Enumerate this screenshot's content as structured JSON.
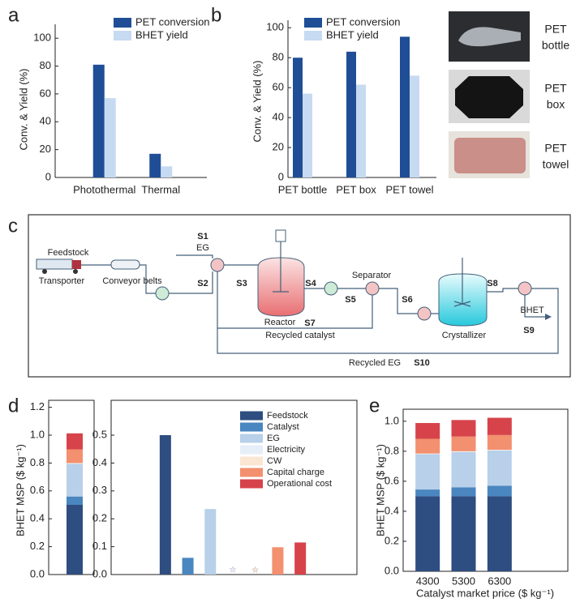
{
  "chart_data": [
    {
      "type": "bar",
      "panel": "a",
      "categories": [
        "Photothermal",
        "Thermal"
      ],
      "series": [
        {
          "name": "PET conversion",
          "color": "#1f4e96",
          "values": [
            81,
            17
          ]
        },
        {
          "name": "BHET yield",
          "color": "#c6daf1",
          "values": [
            57,
            8
          ]
        }
      ],
      "ylabel": "Conv. & Yield (%)",
      "ylim": [
        0,
        110
      ],
      "yticks": [
        0,
        20,
        40,
        60,
        80,
        100
      ],
      "legend": "upper right"
    },
    {
      "type": "bar",
      "panel": "b",
      "categories": [
        "PET bottle",
        "PET box",
        "PET towel"
      ],
      "series": [
        {
          "name": "PET conversion",
          "color": "#1f4e96",
          "values": [
            80,
            84,
            94
          ]
        },
        {
          "name": "BHET yield",
          "color": "#c6daf1",
          "values": [
            56,
            62,
            68
          ]
        }
      ],
      "ylabel": "Conv. & Yield (%)",
      "ylim": [
        0,
        105
      ],
      "yticks": [
        0,
        20,
        40,
        60,
        80,
        100
      ],
      "legend": "upper left"
    },
    {
      "type": "stacked_bar",
      "panel": "d",
      "categories": [
        null
      ],
      "series": [
        {
          "color": "#2e4d80",
          "values": [
            0.5
          ]
        },
        {
          "color": "#4a86c0",
          "values": [
            0.06
          ]
        },
        {
          "color": "#b8d0e9",
          "values": [
            0.235
          ]
        },
        {
          "color": "#e6eef8",
          "values": [
            0.003
          ]
        },
        {
          "color": "#fbe6d4",
          "values": [
            0.002
          ]
        },
        {
          "color": "#f2906f",
          "values": [
            0.098
          ]
        },
        {
          "color": "#d7434a",
          "values": [
            0.115
          ]
        }
      ],
      "ylabel": "BHET MSP ($ kg⁻¹)",
      "ylim": [
        0,
        1.25
      ],
      "frame": true,
      "yticks": [
        {
          "value": 0,
          "label": "0.0"
        },
        {
          "value": 0.2,
          "label": "0.2"
        },
        {
          "value": 0.4,
          "label": "0.4"
        },
        {
          "value": 0.6,
          "label": "0.6"
        },
        {
          "value": 0.8,
          "label": "0.8"
        },
        {
          "value": 1.0,
          "label": "1.0"
        },
        {
          "value": 1.2,
          "label": "1.2"
        }
      ]
    },
    {
      "type": "bar",
      "categories": [
        "Feedstock",
        "Catalyst",
        "EG",
        "Electricity",
        "CW",
        "Capital charge",
        "Operational cost"
      ],
      "values": [
        0.5,
        0.06,
        0.235,
        0.003,
        0.002,
        0.098,
        0.115
      ],
      "colors": [
        "#2e4d80",
        "#4a86c0",
        "#b8d0e9",
        "#e6eef8",
        "#fbe6d4",
        "#f2906f",
        "#d7434a"
      ],
      "ylim": [
        0,
        0.625
      ],
      "frame": true,
      "legend": "upper right",
      "yticks": [
        {
          "value": 0,
          "label": "0.0"
        },
        {
          "value": 0.1,
          "label": "0.1"
        },
        {
          "value": 0.2,
          "label": "0.2"
        },
        {
          "value": 0.3,
          "label": "0.3"
        },
        {
          "value": 0.4,
          "label": "0.4"
        },
        {
          "value": 0.5,
          "label": "0.5"
        }
      ]
    },
    {
      "type": "stacked_bar",
      "panel": "e",
      "categories": [
        "4300",
        "5300",
        "6300"
      ],
      "series": [
        {
          "color": "#2e4d80",
          "values": [
            0.5,
            0.5,
            0.5
          ]
        },
        {
          "color": "#4a86c0",
          "values": [
            0.045,
            0.06,
            0.07
          ]
        },
        {
          "color": "#b8d0e9",
          "values": [
            0.235,
            0.235,
            0.235
          ]
        },
        {
          "color": "#e6eef8",
          "values": [
            0.003,
            0.003,
            0.003
          ]
        },
        {
          "color": "#fbe6d4",
          "values": [
            0.002,
            0.002,
            0.002
          ]
        },
        {
          "color": "#f2906f",
          "values": [
            0.098,
            0.098,
            0.098
          ]
        },
        {
          "color": "#d7434a",
          "values": [
            0.105,
            0.11,
            0.115
          ]
        }
      ],
      "xlabel": "Catalyst market price ($ kg⁻¹)",
      "ylabel": "BHET MSP ($ kg⁻¹)",
      "ylim": [
        0,
        1.08
      ],
      "frame": true,
      "yticks": [
        {
          "value": 0,
          "label": "0.0"
        },
        {
          "value": 0.2,
          "label": "0.2"
        },
        {
          "value": 0.4,
          "label": "0.4"
        },
        {
          "value": 0.6,
          "label": "0.6"
        },
        {
          "value": 0.8,
          "label": "0.8"
        },
        {
          "value": 1.0,
          "label": "1.0"
        }
      ]
    }
  ],
  "photos": [
    {
      "label": [
        "PET",
        "bottle"
      ]
    },
    {
      "label": [
        "PET",
        "box"
      ]
    },
    {
      "label": [
        "PET",
        "towel"
      ]
    }
  ],
  "diagram": {
    "panel": "c",
    "labels": [
      "Feedstock",
      "Transporter",
      "Conveyor belts",
      "S1",
      "EG",
      "S2",
      "S3",
      "Reactor",
      "S4",
      "S5",
      "Separator",
      "S6",
      "S7",
      "Recycled catalyst",
      "Crystallizer",
      "S8",
      "BHET",
      "S9",
      "Recycled EG",
      "S10"
    ]
  }
}
